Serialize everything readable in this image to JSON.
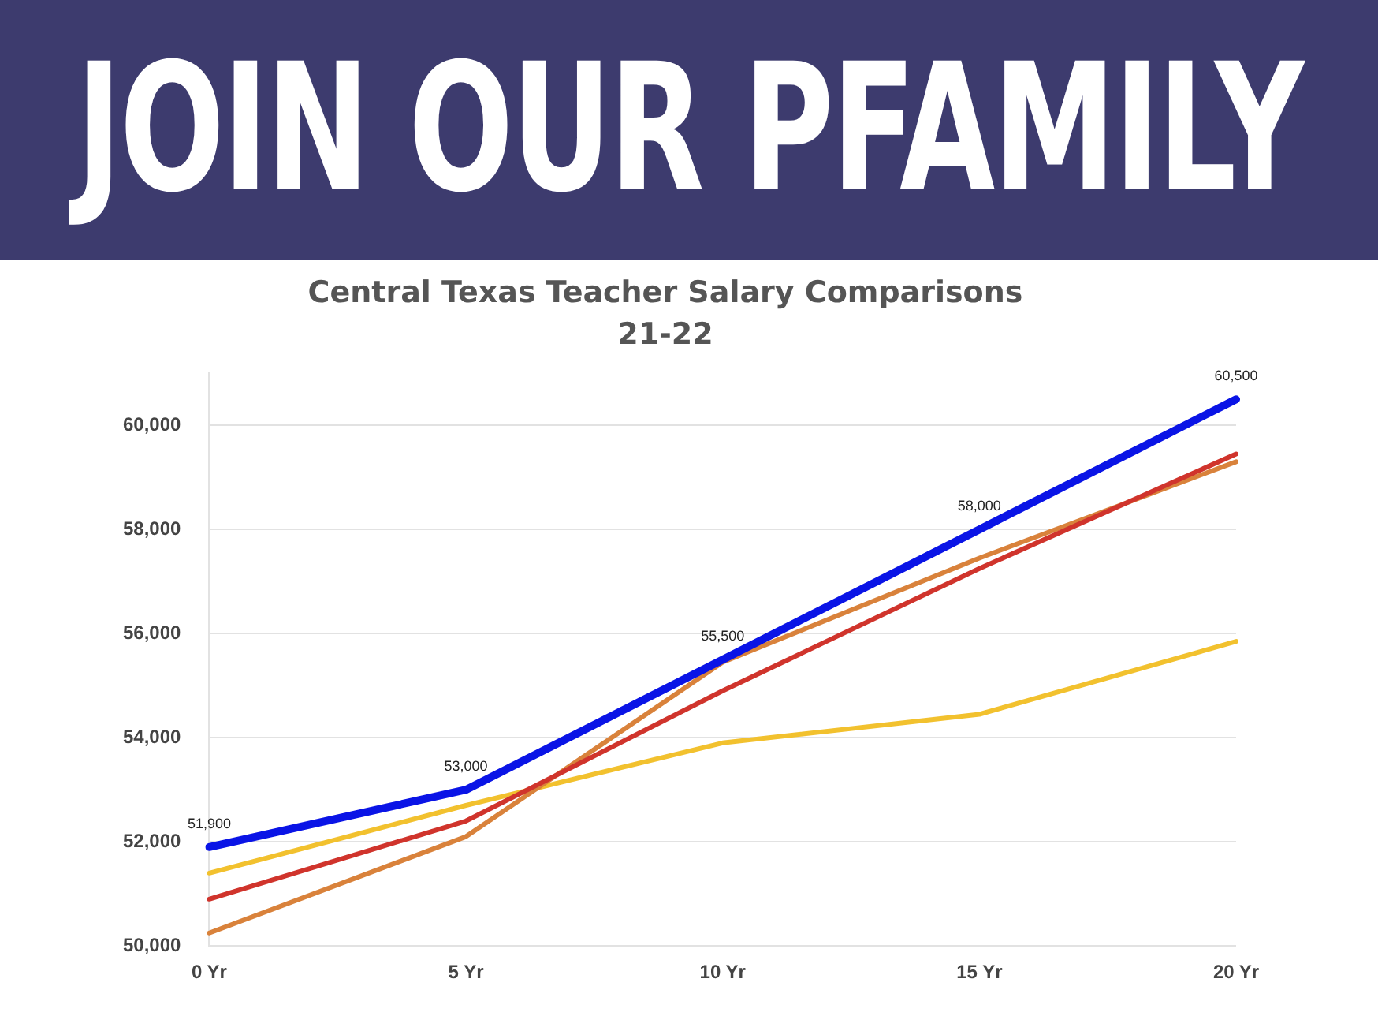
{
  "chart_data": {
    "type": "line",
    "title": "Central Texas Teacher Salary Comparisons",
    "subtitle": "21-22",
    "annotations": [
      "JOIN OUR PFAMILY"
    ],
    "categories": [
      "0 Yr",
      "5 Yr",
      "10 Yr",
      "15 Yr",
      "20 Yr"
    ],
    "series": [
      {
        "color": "#f2c12e",
        "values": [
          51400,
          52700,
          53900,
          54450,
          55850
        ]
      },
      {
        "color": "#d9823b",
        "values": [
          50250,
          52100,
          55450,
          57450,
          59300
        ]
      },
      {
        "color": "#d0342c",
        "values": [
          50900,
          52400,
          54900,
          57250,
          59450
        ]
      },
      {
        "color": "#0a14e6",
        "values": [
          51900,
          53000,
          55500,
          58000,
          60500
        ],
        "value_labels": [
          "51,900",
          "53,000",
          "55,500",
          "58,000",
          "60,500"
        ]
      }
    ],
    "ylim": [
      50000,
      61000
    ],
    "yticks": [
      {
        "value": 50000,
        "label": "50,000"
      },
      {
        "value": 52000,
        "label": "52,000"
      },
      {
        "value": 54000,
        "label": "54,000"
      },
      {
        "value": 56000,
        "label": "56,000"
      },
      {
        "value": 58000,
        "label": "58,000"
      },
      {
        "value": 60000,
        "label": "60,000"
      }
    ],
    "grid": "y",
    "legend": false,
    "marker": "none",
    "line_style": "solid"
  }
}
